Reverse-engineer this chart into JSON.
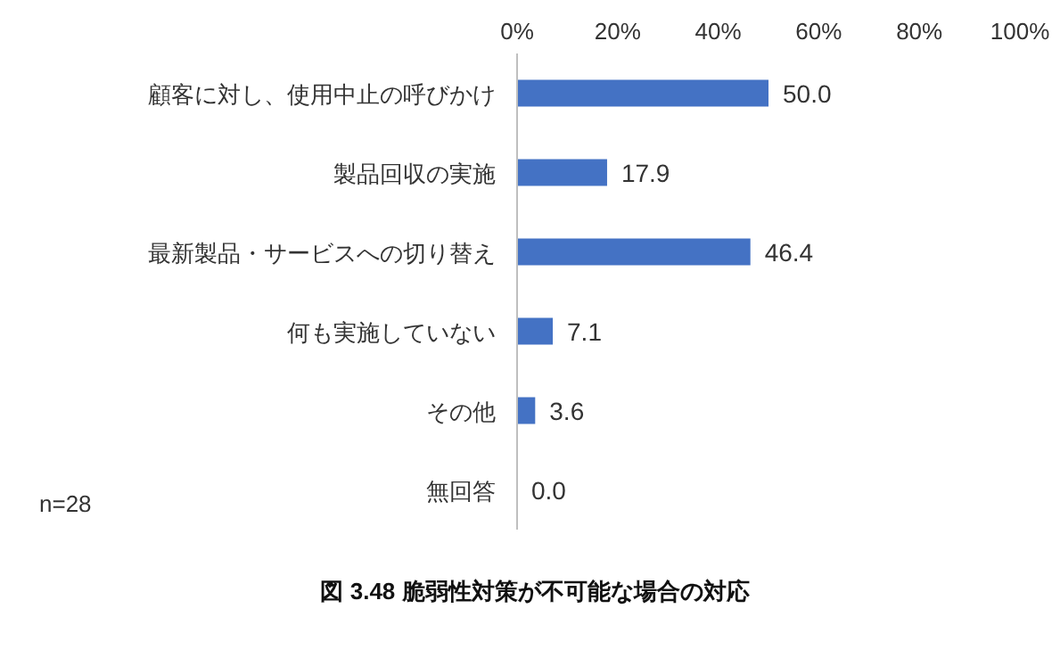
{
  "chart_data": {
    "type": "bar",
    "orientation": "horizontal",
    "title": "図 3.48 脆弱性対策が不可能な場合の対応",
    "categories": [
      "顧客に対し、使用中止の呼びかけ",
      "製品回収の実施",
      "最新製品・サービスへの切り替え",
      "何も実施していない",
      "その他",
      "無回答"
    ],
    "values": [
      50.0,
      17.9,
      46.4,
      7.1,
      3.6,
      0.0
    ],
    "value_labels": [
      "50.0",
      "17.9",
      "46.4",
      "7.1",
      "3.6",
      "0.0"
    ],
    "color": "#4472c4",
    "xlim": [
      0,
      100
    ],
    "xticks": [
      {
        "value": 0,
        "label": "0%"
      },
      {
        "value": 20,
        "label": "20%"
      },
      {
        "value": 40,
        "label": "40%"
      },
      {
        "value": 60,
        "label": "60%"
      },
      {
        "value": 80,
        "label": "80%"
      },
      {
        "value": 100,
        "label": "100%"
      }
    ],
    "annotations": [
      "n=28"
    ],
    "grid": false
  }
}
